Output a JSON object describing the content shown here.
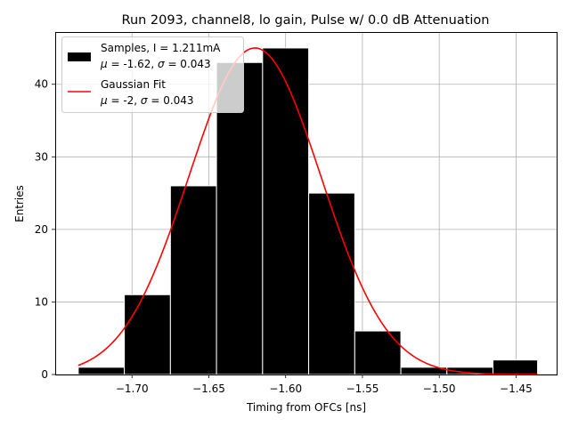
{
  "chart_data": {
    "type": "bar",
    "title": "Run 2093, channel8, lo gain, Pulse w/ 0.0 dB Attenuation",
    "xlabel": "Timing from OFCs [ns]",
    "ylabel": "Entries",
    "xlim": [
      -1.75,
      -1.423
    ],
    "ylim": [
      0,
      47.2
    ],
    "grid": true,
    "xticks": [
      -1.7,
      -1.65,
      -1.6,
      -1.55,
      -1.5,
      -1.45
    ],
    "xtick_labels": [
      "−1.70",
      "−1.65",
      "−1.60",
      "−1.55",
      "−1.50",
      "−1.45"
    ],
    "yticks": [
      0,
      10,
      20,
      30,
      40
    ],
    "ytick_labels": [
      "0",
      "10",
      "20",
      "30",
      "40"
    ],
    "histogram": {
      "name": "Samples",
      "color": "#000000",
      "bins": [
        {
          "x0": -1.735,
          "x1": -1.705,
          "count": 1
        },
        {
          "x0": -1.705,
          "x1": -1.675,
          "count": 11
        },
        {
          "x0": -1.675,
          "x1": -1.645,
          "count": 26
        },
        {
          "x0": -1.645,
          "x1": -1.615,
          "count": 43
        },
        {
          "x0": -1.615,
          "x1": -1.585,
          "count": 45
        },
        {
          "x0": -1.585,
          "x1": -1.555,
          "count": 25
        },
        {
          "x0": -1.555,
          "x1": -1.525,
          "count": 6
        },
        {
          "x0": -1.525,
          "x1": -1.495,
          "count": 1
        },
        {
          "x0": -1.495,
          "x1": -1.465,
          "count": 1
        },
        {
          "x0": -1.465,
          "x1": -1.436,
          "count": 2
        }
      ]
    },
    "fit": {
      "name": "Gaussian Fit",
      "color": "#ff0000",
      "type": "gaussian",
      "mu": -1.62,
      "sigma": 0.043,
      "amplitude": 45,
      "x_range": [
        -1.735,
        -1.436
      ]
    },
    "legend": {
      "position": "top-left",
      "entries": [
        {
          "line1": "Samples, I = 1.211mA",
          "line2_prefix": "",
          "mu_symbol": "μ",
          "mu_text": " = -1.62, ",
          "sigma_symbol": "σ",
          "sigma_text": " = 0.043"
        },
        {
          "line1": "Gaussian Fit",
          "mu_symbol": "μ",
          "mu_text": " = -2, ",
          "sigma_symbol": "σ",
          "sigma_text": " = 0.043"
        }
      ]
    }
  }
}
